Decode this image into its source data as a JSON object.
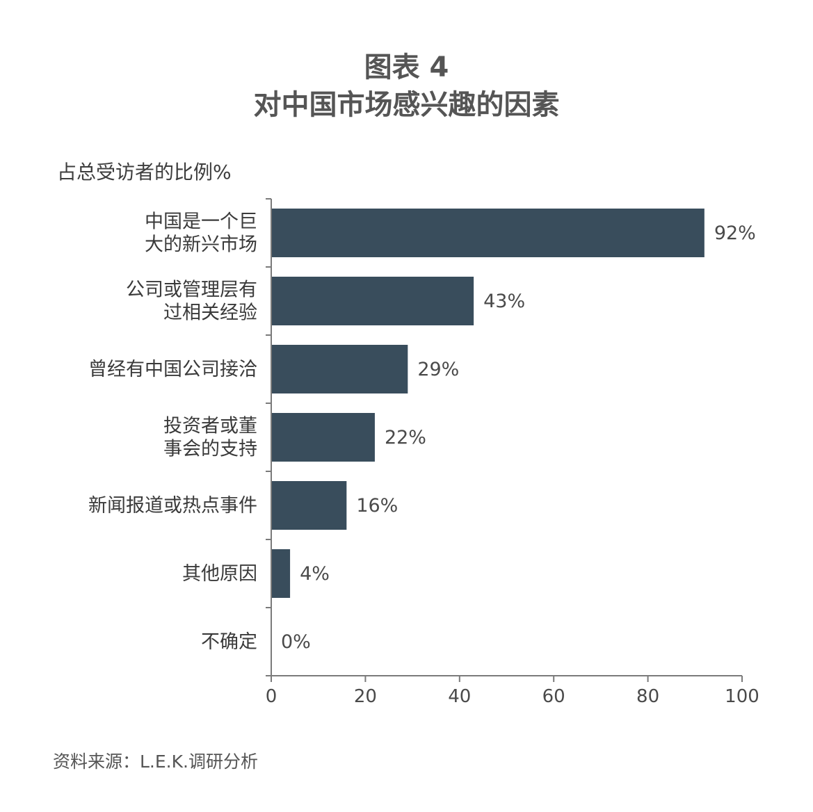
{
  "chart_data": {
    "type": "bar",
    "orientation": "horizontal",
    "title": "图表 4",
    "subtitle": "对中国市场感兴趣的因素",
    "ylabel": "占总受访者的比例%",
    "categories": [
      [
        "中国是一个巨",
        "大的新兴市场"
      ],
      [
        "公司或管理层有",
        "过相关经验"
      ],
      [
        "曾经有中国公司接洽"
      ],
      [
        "投资者或董",
        "事会的支持"
      ],
      [
        "新闻报道或热点事件"
      ],
      [
        "其他原因"
      ],
      [
        "不确定"
      ]
    ],
    "values": [
      92,
      43,
      29,
      22,
      16,
      4,
      0
    ],
    "value_labels": [
      "92%",
      "43%",
      "29%",
      "22%",
      "16%",
      "4%",
      "0%"
    ],
    "xlim": [
      0,
      100
    ],
    "xticks": [
      0,
      20,
      40,
      60,
      80,
      100
    ],
    "xtick_labels": [
      "0",
      "20",
      "40",
      "60",
      "80",
      "100"
    ],
    "grid": false,
    "bar_color": "#394d5c",
    "axis_color": "#7a7a7a"
  },
  "source": "资料来源：L.E.K.调研分析"
}
